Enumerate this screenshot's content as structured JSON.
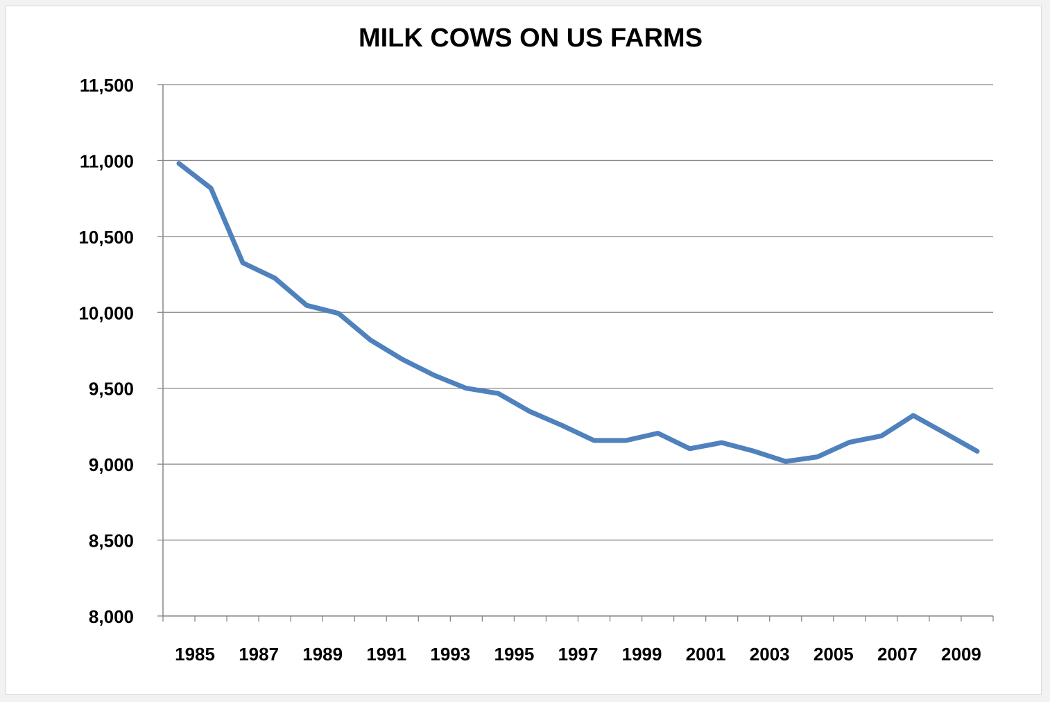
{
  "chart_data": {
    "type": "line",
    "title": "MILK COWS ON US FARMS",
    "xlabel": "",
    "ylabel": "",
    "ylim": [
      8000,
      11500
    ],
    "yticks": [
      8000,
      8500,
      9000,
      9500,
      10000,
      10500,
      11000,
      11500
    ],
    "ytick_labels": [
      "8,000",
      "8,500",
      "9,000",
      "9,500",
      "10,000",
      "10,500",
      "11,000",
      "11,500"
    ],
    "xlim": [
      1985,
      2010
    ],
    "xtick_labels": [
      "1985",
      "1987",
      "1989",
      "1991",
      "1993",
      "1995",
      "1997",
      "1999",
      "2001",
      "2003",
      "2005",
      "2007",
      "2009"
    ],
    "grid": true,
    "series": [
      {
        "color": "#4f81bd",
        "x": [
          1985,
          1986,
          1987,
          1988,
          1989,
          1990,
          1991,
          1992,
          1993,
          1994,
          1995,
          1996,
          1997,
          1998,
          1999,
          2000,
          2001,
          2002,
          2003,
          2004,
          2005,
          2006,
          2007,
          2008,
          2009,
          2010
        ],
        "values": [
          10981,
          10818,
          10326,
          10226,
          10046,
          9993,
          9817,
          9690,
          9585,
          9500,
          9466,
          9346,
          9255,
          9156,
          9156,
          9204,
          9102,
          9142,
          9086,
          9018,
          9048,
          9144,
          9186,
          9321,
          9204,
          9085
        ]
      }
    ]
  }
}
